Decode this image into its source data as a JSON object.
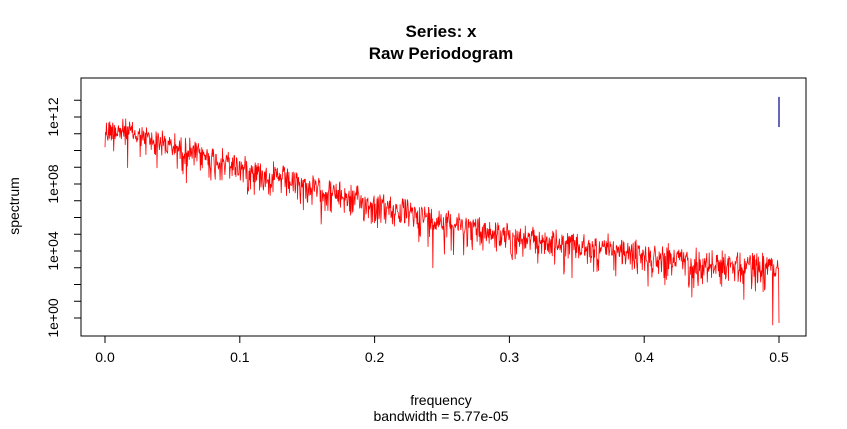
{
  "chart_data": {
    "type": "line",
    "title": "Series: x",
    "subtitle": "Raw Periodogram",
    "xlabel": "frequency",
    "sub_xlabel": "bandwidth = 5.77e-05",
    "ylabel": "spectrum",
    "xlim": [
      0.0,
      0.5
    ],
    "ylim_log10": [
      -0.5,
      13.6
    ],
    "y_scale": "log",
    "x_ticks": [
      {
        "value": 0.0,
        "label": "0.0"
      },
      {
        "value": 0.1,
        "label": "0.1"
      },
      {
        "value": 0.2,
        "label": "0.2"
      },
      {
        "value": 0.3,
        "label": "0.3"
      },
      {
        "value": 0.4,
        "label": "0.4"
      },
      {
        "value": 0.5,
        "label": "0.5"
      }
    ],
    "y_ticks": [
      {
        "value": 1,
        "label": "1e+00"
      },
      {
        "value": 10000,
        "label": "1e+04"
      },
      {
        "value": 100000000,
        "label": "1e+08"
      },
      {
        "value": 1000000000000,
        "label": "1e+12"
      }
    ],
    "series": [
      {
        "color": "#ff0000",
        "trend_log10": {
          "x": [
            0.0,
            0.005,
            0.05,
            0.1,
            0.15,
            0.2,
            0.25,
            0.3,
            0.35,
            0.4,
            0.45,
            0.5
          ],
          "y": [
            11.2,
            11.5,
            10.4,
            9.2,
            8.0,
            6.9,
            6.0,
            5.0,
            4.4,
            3.9,
            3.4,
            3.2
          ]
        },
        "noise_log10": 0.8,
        "min_spike_log10": -0.3
      }
    ],
    "ci_bar": {
      "x": 0.5,
      "y_log10": [
        11.4,
        13.2
      ],
      "color": "#00008b"
    },
    "grid": false,
    "legend": "none"
  }
}
